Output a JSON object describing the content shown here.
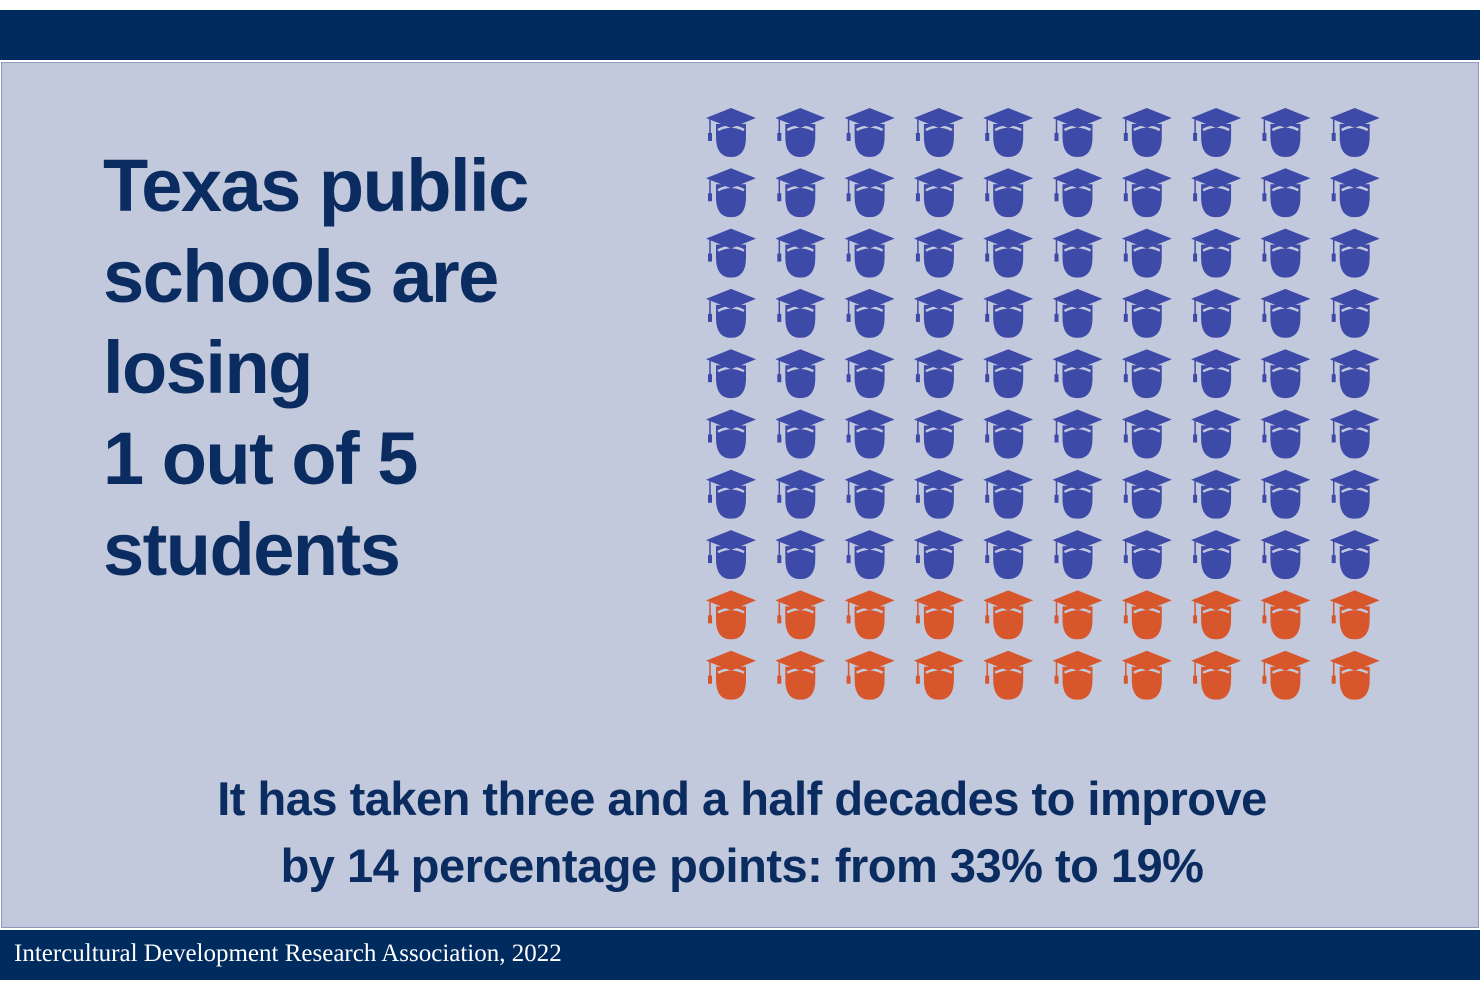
{
  "chart_data": {
    "type": "waffle",
    "title_lines": [
      "Texas public",
      "schools are",
      "losing",
      "1 out of 5",
      "students"
    ],
    "values": [
      80,
      20
    ],
    "colors": [
      "#3e4aa7",
      "#d8562b"
    ],
    "columns": 10,
    "footnote_lines": [
      "It has taken three and a half decades to improve",
      "by 14 percentage points: from 33% to 19%"
    ],
    "source": "Intercultural Development Research Association, 2022"
  }
}
